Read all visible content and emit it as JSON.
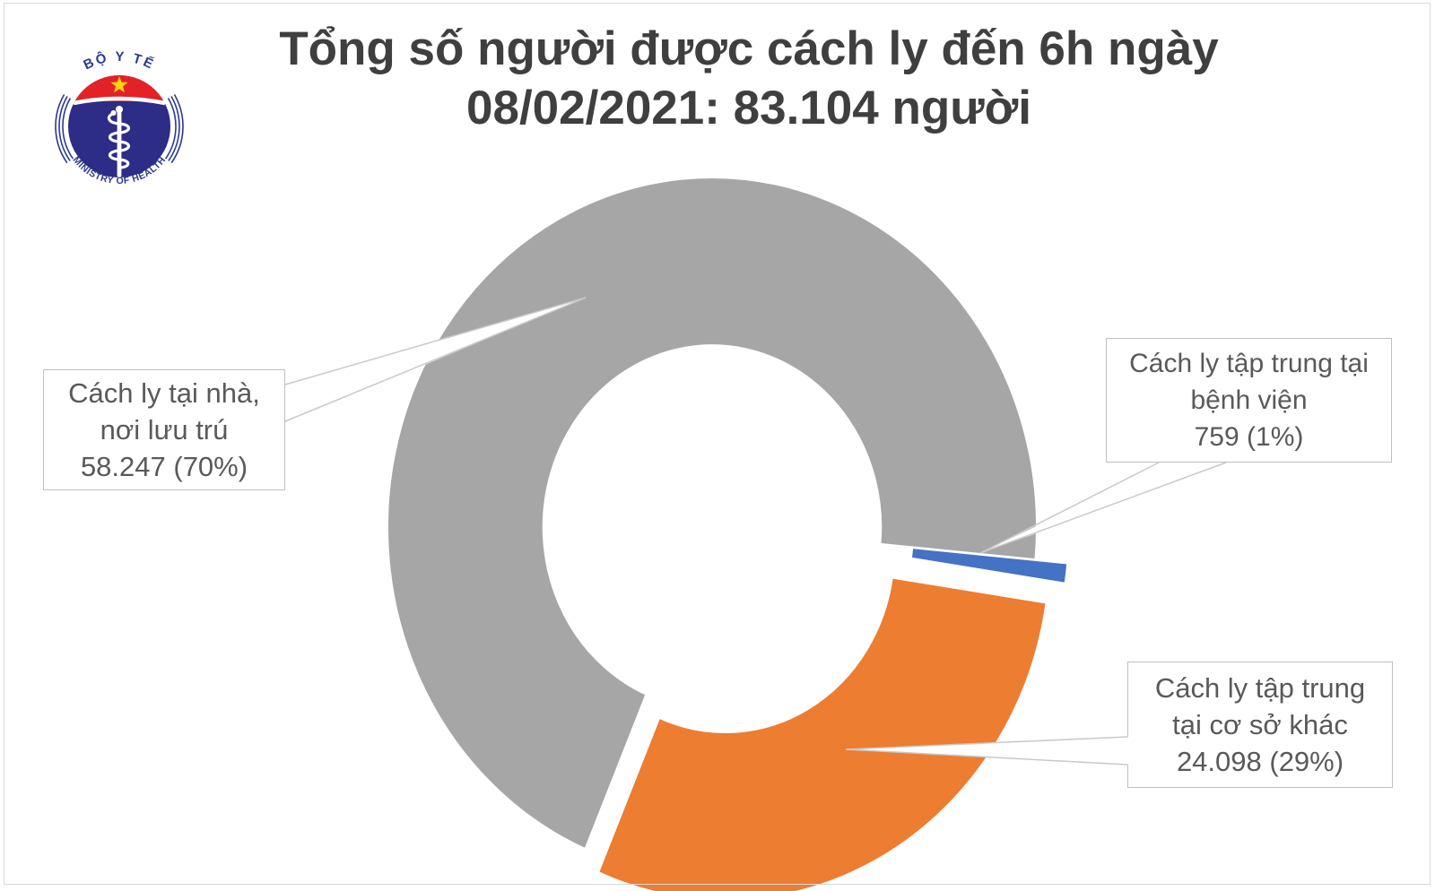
{
  "logo": {
    "top_text": "BỘ Y TẾ",
    "bottom_text": "MINISTRY OF HEALTH"
  },
  "title": {
    "line1": "Tổng số người được cách ly đến 6h ngày",
    "line2": "08/02/2021: 83.104 người"
  },
  "chart_data": {
    "type": "pie",
    "subtype": "doughnut-exploded",
    "title": "Tổng số người được cách ly đến 6h ngày 08/02/2021: 83.104 người",
    "total": 83104,
    "total_display": "83.104 người",
    "start_angle_deg": 203,
    "hole_ratio": 0.52,
    "legend_position": "none",
    "grid": false,
    "slices": [
      {
        "name": "Cách ly tại nhà, nơi lưu trú",
        "value": 58247,
        "value_display": "58.247",
        "pct": 70,
        "pct_display": "70%",
        "color": "#a6a6a6",
        "exploded": false
      },
      {
        "name": "Cách ly tập trung tại bệnh viện",
        "value": 759,
        "value_display": "759",
        "pct": 1,
        "pct_display": "1%",
        "color": "#4472c4",
        "exploded": true
      },
      {
        "name": "Cách ly tập trung tại cơ sở khác",
        "value": 24098,
        "value_display": "24.098",
        "pct": 29,
        "pct_display": "29%",
        "color": "#ed7d31",
        "exploded": true
      }
    ]
  },
  "callout_boxes": {
    "home": {
      "line1": "Cách ly tại nhà,",
      "line2": "nơi lưu trú",
      "line3": "58.247 (70%)"
    },
    "hospital": {
      "line1": "Cách ly tập trung tại",
      "line2": "bệnh viện",
      "line3": "759 (1%)"
    },
    "other": {
      "line1": "Cách ly tập trung",
      "line2": "tại cơ sở khác",
      "line3": "24.098 (29%)"
    }
  },
  "colors": {
    "title_text": "#3f3f3f",
    "label_text": "#595959",
    "box_border": "#c0c0c0",
    "callout_line": "#c9c9c9",
    "slice_stroke": "#ffffff",
    "frame_border": "#d8d8d8",
    "logo_blue": "#2d2c86",
    "logo_text_blue": "#2b3990",
    "logo_red": "#e32228",
    "logo_star_yellow": "#ffd20a"
  }
}
